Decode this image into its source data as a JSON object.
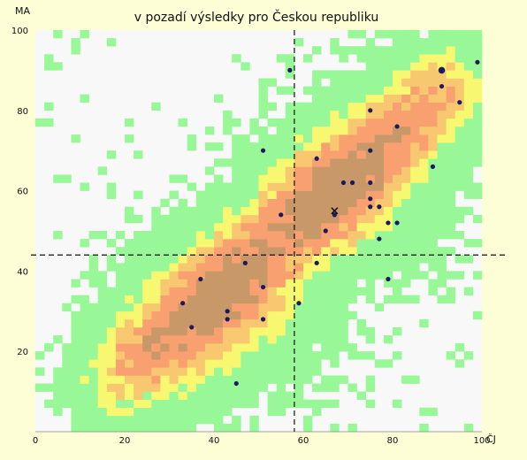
{
  "chart_data": {
    "type": "scatter",
    "title": "v pozadí výsledky pro Českou republiku",
    "xlabel": "ČJ",
    "ylabel": "MA",
    "xlim": [
      0,
      100
    ],
    "ylim": [
      0,
      100
    ],
    "x_ticks": [
      0,
      20,
      40,
      60,
      80,
      100
    ],
    "y_ticks": [
      20,
      40,
      60,
      80,
      100
    ],
    "background": {
      "type": "heatmap",
      "description_levels": [
        "white",
        "green",
        "yellow",
        "light-orange",
        "orange",
        "tan"
      ],
      "colors": [
        "#f8f8f8",
        "#98f898",
        "#f8f870",
        "#f8c870",
        "#f8a070",
        "#c89868"
      ]
    },
    "reference_lines": {
      "x": 58,
      "y": 44
    },
    "points": [
      {
        "x": 99,
        "y": 92
      },
      {
        "x": 91,
        "y": 90,
        "large": true
      },
      {
        "x": 91,
        "y": 86
      },
      {
        "x": 57,
        "y": 90
      },
      {
        "x": 95,
        "y": 82
      },
      {
        "x": 75,
        "y": 80
      },
      {
        "x": 81,
        "y": 76
      },
      {
        "x": 51,
        "y": 70
      },
      {
        "x": 63,
        "y": 68
      },
      {
        "x": 75,
        "y": 70
      },
      {
        "x": 89,
        "y": 66
      },
      {
        "x": 69,
        "y": 62
      },
      {
        "x": 71,
        "y": 62
      },
      {
        "x": 75,
        "y": 62
      },
      {
        "x": 75,
        "y": 58
      },
      {
        "x": 75,
        "y": 56
      },
      {
        "x": 77,
        "y": 56
      },
      {
        "x": 55,
        "y": 54
      },
      {
        "x": 67,
        "y": 54
      },
      {
        "x": 79,
        "y": 52
      },
      {
        "x": 81,
        "y": 52
      },
      {
        "x": 65,
        "y": 50
      },
      {
        "x": 77,
        "y": 48
      },
      {
        "x": 47,
        "y": 42
      },
      {
        "x": 63,
        "y": 42
      },
      {
        "x": 37,
        "y": 38
      },
      {
        "x": 79,
        "y": 38
      },
      {
        "x": 51,
        "y": 36
      },
      {
        "x": 33,
        "y": 32
      },
      {
        "x": 59,
        "y": 32
      },
      {
        "x": 43,
        "y": 30
      },
      {
        "x": 43,
        "y": 28
      },
      {
        "x": 51,
        "y": 28
      },
      {
        "x": 35,
        "y": 26
      },
      {
        "x": 45,
        "y": 12
      }
    ],
    "marker_x": {
      "x": 67,
      "y": 55
    }
  }
}
